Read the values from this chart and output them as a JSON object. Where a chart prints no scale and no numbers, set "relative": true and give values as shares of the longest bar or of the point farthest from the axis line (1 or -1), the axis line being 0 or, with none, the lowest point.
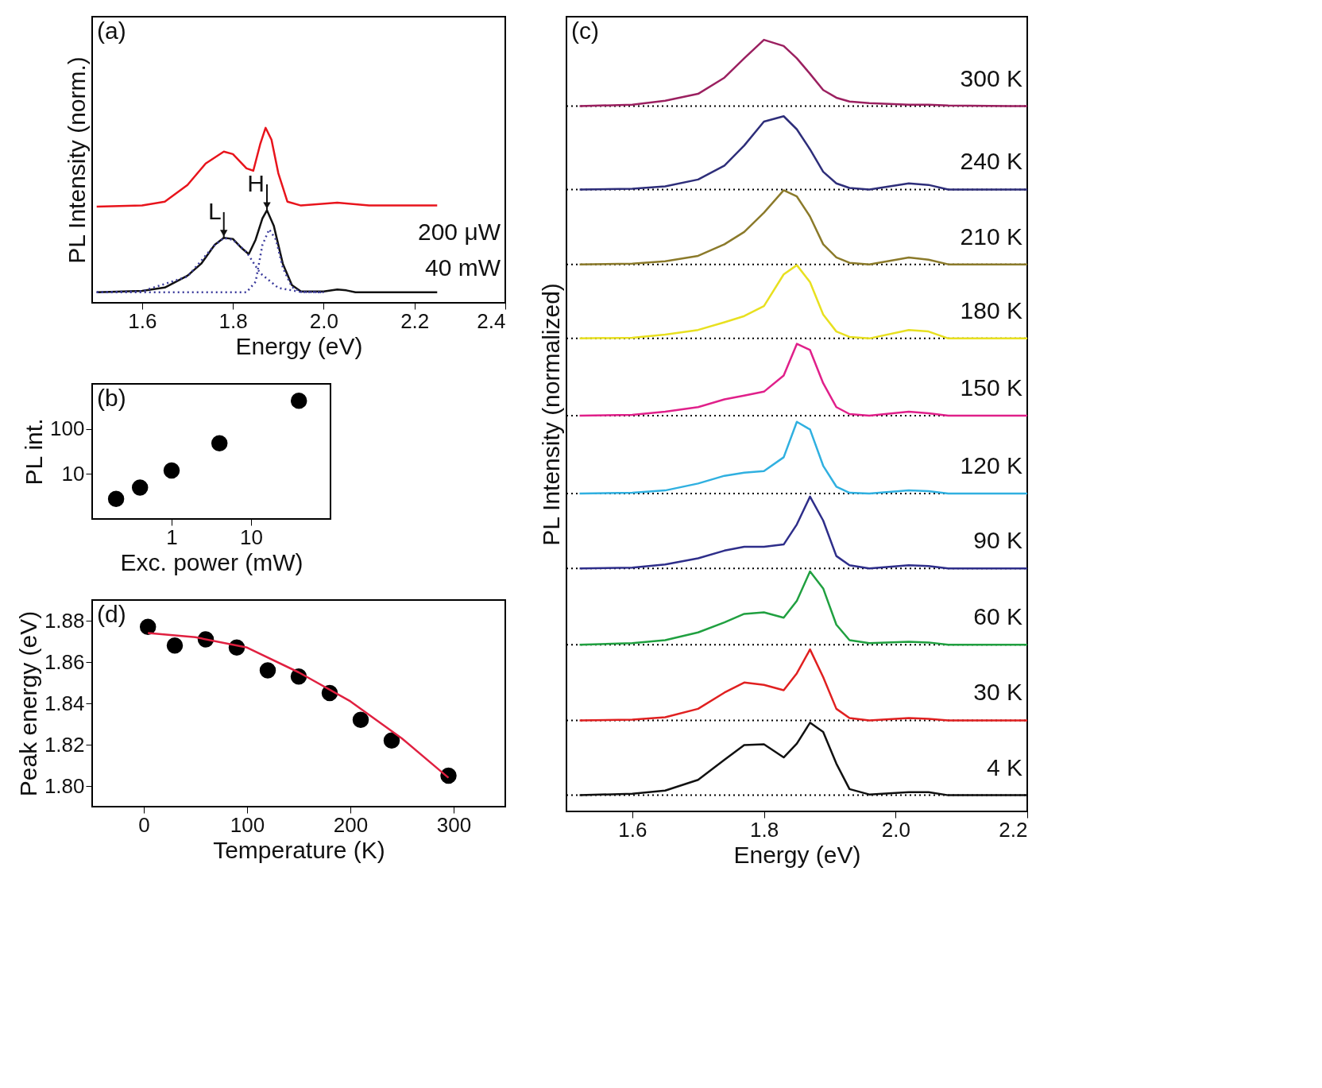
{
  "chart_data": [
    {
      "type": "line",
      "relative": true,
      "xlabel": "Energy (eV)",
      "ylabel": "PL Intensity (norm.)",
      "xlim": [
        1.49,
        2.4
      ],
      "xticks": [
        1.6,
        1.8,
        {
          "value": 2.0,
          "label": "2.0"
        },
        2.2,
        2.4
      ],
      "tick_labels": "x",
      "annotations": [
        "(a)",
        {
          "text": "L",
          "x": 1.78,
          "y": 0.371
        },
        {
          "text": "H",
          "x": 1.875,
          "y": 0.529
        }
      ],
      "series": [
        {
          "name": "200 μW",
          "color": "#e8141c",
          "x": [
            1.5,
            1.6,
            1.65,
            1.7,
            1.74,
            1.78,
            1.8,
            1.83,
            1.845,
            1.86,
            1.872,
            1.885,
            1.9,
            1.92,
            1.95,
            2.03,
            2.1,
            2.25
          ],
          "values": [
            0.55,
            0.556,
            0.578,
            0.673,
            0.796,
            0.864,
            0.85,
            0.768,
            0.755,
            0.905,
            1.0,
            0.932,
            0.741,
            0.578,
            0.556,
            0.572,
            0.556,
            0.556
          ]
        },
        {
          "name": "40 mW",
          "color": "#111111",
          "x": [
            1.5,
            1.6,
            1.65,
            1.7,
            1.73,
            1.76,
            1.78,
            1.8,
            1.82,
            1.835,
            1.85,
            1.865,
            1.875,
            1.89,
            1.91,
            1.93,
            1.95,
            2.0,
            2.03,
            2.05,
            2.07,
            2.25
          ],
          "values": [
            0.06,
            0.068,
            0.087,
            0.155,
            0.223,
            0.332,
            0.371,
            0.365,
            0.311,
            0.278,
            0.36,
            0.482,
            0.529,
            0.441,
            0.223,
            0.101,
            0.065,
            0.065,
            0.076,
            0.071,
            0.06,
            0.06
          ]
        },
        {
          "color": "#3b3b9c",
          "line_style": "dotted",
          "x": [
            1.5,
            1.6,
            1.7,
            1.76,
            1.78,
            1.8,
            1.83,
            1.86,
            1.9,
            1.95,
            2.0
          ],
          "values": [
            0.06,
            0.066,
            0.15,
            0.33,
            0.37,
            0.36,
            0.29,
            0.17,
            0.085,
            0.062,
            0.06
          ]
        },
        {
          "color": "#3b3b9c",
          "line_style": "dotted",
          "x": [
            1.5,
            1.83,
            1.85,
            1.865,
            1.88,
            1.895,
            1.91,
            1.93,
            1.95,
            2.0
          ],
          "values": [
            0.06,
            0.06,
            0.12,
            0.33,
            0.42,
            0.36,
            0.2,
            0.09,
            0.062,
            0.06
          ]
        }
      ]
    },
    {
      "type": "scatter",
      "xlabel": "Exc. power (mW)",
      "ylabel": "PL int.",
      "log": "xy",
      "xlim": [
        0.1,
        100
      ],
      "ylim": [
        1,
        1000
      ],
      "xticks": [
        1,
        10
      ],
      "yticks": [
        10,
        100
      ],
      "annotations": [
        "(b)"
      ],
      "series": [
        {
          "color": "#000000",
          "marker": "circle",
          "x": [
            0.2,
            0.4,
            1,
            4,
            40
          ],
          "values": [
            2.8,
            5.0,
            11.9,
            48,
            420
          ]
        }
      ]
    },
    {
      "type": "line",
      "relative": true,
      "xlabel": "Energy (eV)",
      "ylabel": "PL Intensity (normalized)",
      "xlim": [
        1.5,
        2.2
      ],
      "xticks": [
        1.6,
        1.8,
        {
          "value": 2.0,
          "label": "2.0"
        },
        2.2
      ],
      "tick_labels": "x",
      "annotations": [
        "(c)"
      ],
      "x": [
        1.52,
        1.6,
        1.65,
        1.7,
        1.74,
        1.77,
        1.8,
        1.83,
        1.85,
        1.87,
        1.89,
        1.91,
        1.93,
        1.96,
        2.02,
        2.05,
        2.08,
        2.2
      ],
      "ref_lines": [
        {
          "axis": "y",
          "value": 0.914,
          "line_style": "dotted"
        },
        {
          "axis": "y",
          "value": 0.806,
          "line_style": "dotted"
        },
        {
          "axis": "y",
          "value": 0.709,
          "line_style": "dotted"
        },
        {
          "axis": "y",
          "value": 0.613,
          "line_style": "dotted"
        },
        {
          "axis": "y",
          "value": 0.513,
          "line_style": "dotted"
        },
        {
          "axis": "y",
          "value": 0.412,
          "line_style": "dotted"
        },
        {
          "axis": "y",
          "value": 0.315,
          "line_style": "dotted"
        },
        {
          "axis": "y",
          "value": 0.216,
          "line_style": "dotted"
        },
        {
          "axis": "y",
          "value": 0.118,
          "line_style": "dotted"
        },
        {
          "axis": "y",
          "value": 0.021,
          "line_style": "dotted"
        }
      ],
      "series": [
        {
          "name": "300 K",
          "color": "#9b2060",
          "values": [
            0.914,
            0.916,
            0.921,
            0.93,
            0.951,
            0.976,
            1.0,
            0.992,
            0.976,
            0.956,
            0.935,
            0.925,
            0.92,
            0.918,
            0.916,
            0.916,
            0.915,
            0.914
          ]
        },
        {
          "name": "240 K",
          "color": "#2e2e7a",
          "values": [
            0.806,
            0.807,
            0.81,
            0.819,
            0.837,
            0.863,
            0.894,
            0.901,
            0.884,
            0.858,
            0.829,
            0.814,
            0.808,
            0.806,
            0.814,
            0.812,
            0.806,
            0.806
          ]
        },
        {
          "name": "210 K",
          "color": "#8b7a2a",
          "values": [
            0.709,
            0.71,
            0.713,
            0.72,
            0.735,
            0.751,
            0.776,
            0.805,
            0.797,
            0.771,
            0.735,
            0.718,
            0.711,
            0.709,
            0.718,
            0.715,
            0.709,
            0.709
          ]
        },
        {
          "name": "180 K",
          "color": "#e8e020",
          "values": [
            0.613,
            0.614,
            0.618,
            0.624,
            0.634,
            0.642,
            0.655,
            0.696,
            0.708,
            0.686,
            0.644,
            0.622,
            0.615,
            0.613,
            0.624,
            0.622,
            0.613,
            0.613
          ]
        },
        {
          "name": "150 K",
          "color": "#e0208a",
          "values": [
            0.513,
            0.514,
            0.518,
            0.524,
            0.534,
            0.539,
            0.544,
            0.565,
            0.606,
            0.598,
            0.555,
            0.524,
            0.515,
            0.513,
            0.518,
            0.516,
            0.513,
            0.513
          ]
        },
        {
          "name": "120 K",
          "color": "#30b0e0",
          "values": [
            0.412,
            0.413,
            0.416,
            0.425,
            0.435,
            0.439,
            0.441,
            0.459,
            0.505,
            0.495,
            0.448,
            0.421,
            0.413,
            0.412,
            0.416,
            0.415,
            0.412,
            0.412
          ]
        },
        {
          "name": "90 K",
          "color": "#2e2e8a",
          "values": [
            0.315,
            0.316,
            0.32,
            0.328,
            0.338,
            0.343,
            0.343,
            0.346,
            0.372,
            0.408,
            0.377,
            0.331,
            0.319,
            0.315,
            0.319,
            0.318,
            0.315,
            0.315
          ]
        },
        {
          "name": "60 K",
          "color": "#20a040",
          "values": [
            0.216,
            0.218,
            0.222,
            0.232,
            0.245,
            0.256,
            0.258,
            0.251,
            0.273,
            0.311,
            0.289,
            0.242,
            0.222,
            0.218,
            0.22,
            0.219,
            0.216,
            0.216
          ]
        },
        {
          "name": "30 K",
          "color": "#e02020",
          "values": [
            0.118,
            0.119,
            0.122,
            0.133,
            0.154,
            0.167,
            0.164,
            0.157,
            0.179,
            0.21,
            0.174,
            0.133,
            0.121,
            0.118,
            0.121,
            0.12,
            0.118,
            0.118
          ]
        },
        {
          "name": "4 K",
          "color": "#111111",
          "values": [
            0.021,
            0.023,
            0.027,
            0.041,
            0.067,
            0.086,
            0.087,
            0.07,
            0.088,
            0.115,
            0.103,
            0.062,
            0.029,
            0.022,
            0.025,
            0.025,
            0.021,
            0.021
          ]
        }
      ]
    },
    {
      "type": "scatter",
      "xlabel": "Temperature (K)",
      "ylabel": "Peak energy (eV)",
      "xlim": [
        -50,
        350
      ],
      "ylim": [
        1.79,
        1.89
      ],
      "xticks": [
        0,
        100,
        200,
        300
      ],
      "yticks": [
        {
          "value": 1.8,
          "label": "1.80"
        },
        1.82,
        1.84,
        1.86,
        1.88
      ],
      "annotations": [
        "(d)"
      ],
      "series": [
        {
          "color": "#000000",
          "marker": "circle",
          "x": [
            4,
            30,
            60,
            90,
            120,
            150,
            180,
            210,
            240,
            295
          ],
          "values": [
            1.877,
            1.868,
            1.871,
            1.867,
            1.856,
            1.853,
            1.845,
            1.832,
            1.822,
            1.805
          ]
        },
        {
          "type": "line",
          "color": "#e02040",
          "x": [
            4,
            50,
            100,
            150,
            200,
            250,
            295
          ],
          "values": [
            1.874,
            1.872,
            1.867,
            1.855,
            1.841,
            1.823,
            1.804
          ]
        }
      ]
    }
  ]
}
